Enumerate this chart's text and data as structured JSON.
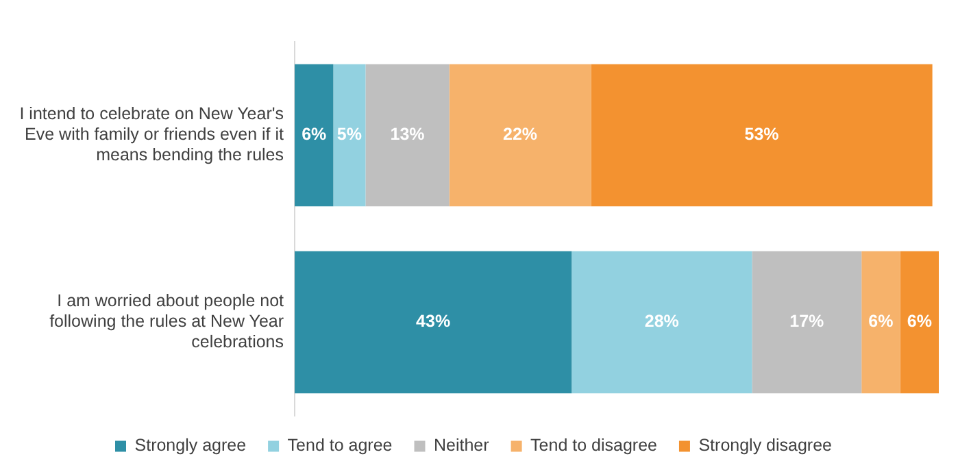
{
  "chart_data": {
    "type": "bar",
    "orientation": "horizontal",
    "stacked": true,
    "legend": "bottom",
    "tick_labels": "y",
    "categories": [
      "I intend to celebrate on New Year's Eve with family or friends even if it means bending the rules",
      "I am worried about people not following the rules at New Year celebrations"
    ],
    "series": [
      {
        "name": "Strongly agree",
        "color": "#2e8fa6",
        "values": [
          6,
          43
        ],
        "value_labels": [
          "6%",
          "43%"
        ]
      },
      {
        "name": "Tend to agree",
        "color": "#92d1e0",
        "values": [
          5,
          28
        ],
        "value_labels": [
          "5%",
          "28%"
        ]
      },
      {
        "name": "Neither",
        "color": "#bfbfbf",
        "values": [
          13,
          17
        ],
        "value_labels": [
          "13%",
          "17%"
        ]
      },
      {
        "name": "Tend to disagree",
        "color": "#f6b26b",
        "values": [
          22,
          6
        ],
        "value_labels": [
          "22%",
          "6%"
        ]
      },
      {
        "name": "Strongly disagree",
        "color": "#f39230",
        "values": [
          53,
          6
        ],
        "value_labels": [
          "53%",
          "6%"
        ]
      }
    ]
  }
}
